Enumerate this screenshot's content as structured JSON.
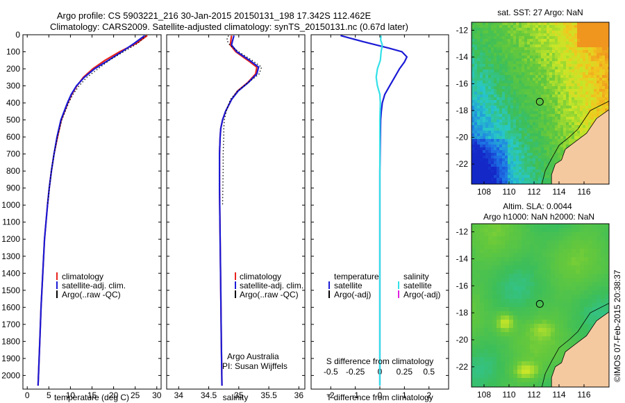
{
  "header": {
    "title_line1": "Argo profile: CS 5903221_216 30-Jan-2015 20150131_198 17.342S 112.462E",
    "title_line2": "Climatology: CARS2009. Satellite-adjusted climatology: synTS_20150131.nc (0.67d later)"
  },
  "credit": "©IMOS 07-Feb-2015 20:38:37",
  "colors": {
    "climatology": "#e8231c",
    "satellite": "#1a1ad6",
    "argo": "#000000",
    "sal_satellite": "#33e0e8",
    "sal_argo": "#e020e0",
    "land": "#f5c9a0"
  },
  "chart_data": [
    {
      "id": "temperature",
      "type": "line",
      "xlabel": "temperature (deg C)",
      "xlim": [
        -1,
        31
      ],
      "xticks": [
        0,
        5,
        10,
        15,
        20,
        25,
        30
      ],
      "ylim": [
        2080,
        0
      ],
      "yticks": [
        0,
        100,
        200,
        300,
        400,
        500,
        600,
        700,
        800,
        900,
        1000,
        1100,
        1200,
        1300,
        1400,
        1500,
        1600,
        1700,
        1800,
        1900,
        2000
      ],
      "y_inverted": true,
      "legend": [
        "climatology",
        "satellite-adj. clim.",
        "Argo(..raw -QC)"
      ],
      "series": [
        {
          "name": "climatology",
          "color_key": "climatology",
          "depth": [
            5,
            50,
            100,
            150,
            200,
            250,
            300,
            350,
            400,
            500,
            600,
            700,
            800,
            900,
            1000,
            1200,
            1400,
            1600,
            1800,
            2000,
            2060
          ],
          "values": [
            27.8,
            25.3,
            21.4,
            18.0,
            15.2,
            13.0,
            11.5,
            10.3,
            9.4,
            7.9,
            7.0,
            6.2,
            5.6,
            5.1,
            4.7,
            4.0,
            3.6,
            3.2,
            2.9,
            2.6,
            2.5
          ]
        },
        {
          "name": "satellite-adj. clim.",
          "color_key": "satellite",
          "depth": [
            5,
            50,
            100,
            150,
            200,
            250,
            300,
            350,
            400,
            500,
            600,
            700,
            800,
            900,
            1000,
            1200,
            1400,
            1600,
            1800,
            2000,
            2060
          ],
          "values": [
            27.2,
            24.8,
            21.9,
            18.8,
            15.6,
            13.2,
            11.4,
            10.2,
            9.3,
            7.8,
            6.9,
            6.2,
            5.6,
            5.1,
            4.7,
            4.0,
            3.6,
            3.2,
            2.9,
            2.6,
            2.5
          ]
        },
        {
          "name": "Argo(..raw -QC)",
          "color_key": "argo",
          "dotted": true,
          "depth": [
            5,
            50,
            100,
            150,
            200,
            250,
            300,
            350,
            400,
            500,
            600,
            700,
            800,
            900,
            1000
          ],
          "values": [
            27.5,
            25.6,
            22.3,
            19.0,
            16.4,
            13.8,
            12.0,
            10.6,
            9.6,
            8.0,
            7.0,
            6.2,
            5.6,
            5.1,
            4.7
          ]
        }
      ]
    },
    {
      "id": "salinity",
      "type": "line",
      "xlabel": "salinity",
      "xlim": [
        33.8,
        36.1
      ],
      "xticks": [
        34,
        34.5,
        35,
        35.5,
        36
      ],
      "ylim": [
        2080,
        0
      ],
      "y_inverted": true,
      "legend": [
        "climatology",
        "satellite-adj. clim.",
        "Argo(..raw -QC)"
      ],
      "annotation": [
        "Argo Australia",
        "PI: Susan Wijffels"
      ],
      "series": [
        {
          "name": "climatology",
          "color_key": "climatology",
          "depth": [
            5,
            30,
            60,
            100,
            150,
            190,
            230,
            280,
            330,
            380,
            450,
            500,
            550,
            600,
            700,
            900,
            1200,
            1500,
            1800,
            2060
          ],
          "values": [
            34.88,
            34.87,
            34.86,
            34.95,
            35.15,
            35.3,
            35.28,
            35.15,
            34.98,
            34.88,
            34.78,
            34.73,
            34.7,
            34.69,
            34.68,
            34.68,
            34.69,
            34.7,
            34.71,
            34.72
          ]
        },
        {
          "name": "satellite-adj. clim.",
          "color_key": "satellite",
          "depth": [
            5,
            30,
            60,
            100,
            150,
            190,
            230,
            280,
            330,
            380,
            450,
            500,
            550,
            600,
            700,
            900,
            1200,
            1500,
            1800,
            2060
          ],
          "values": [
            34.92,
            34.9,
            34.88,
            34.97,
            35.18,
            35.33,
            35.3,
            35.16,
            34.99,
            34.88,
            34.78,
            34.73,
            34.7,
            34.69,
            34.68,
            34.68,
            34.69,
            34.7,
            34.71,
            34.72
          ]
        },
        {
          "name": "Argo(..raw -QC)",
          "color_key": "argo",
          "dotted": true,
          "depth": [
            5,
            30,
            60,
            100,
            150,
            190,
            230,
            280,
            330,
            380,
            450,
            500,
            550,
            600,
            700,
            800,
            1000
          ],
          "values": [
            34.83,
            34.8,
            34.85,
            35.0,
            35.22,
            35.38,
            35.34,
            35.16,
            34.98,
            34.86,
            34.79,
            34.76,
            34.75,
            34.75,
            34.74,
            34.74,
            34.73
          ]
        }
      ]
    },
    {
      "id": "difference",
      "type": "line",
      "xlabel": "T difference from climatology",
      "xlabel_top": "S difference from climatology",
      "xlim": [
        -2.8,
        2.8
      ],
      "xticks": [
        -2,
        -1,
        0,
        1,
        2
      ],
      "xtick_labels_S": [
        "-0.5",
        "-0.25",
        "0",
        "0.25",
        "0.5"
      ],
      "xticks_S_position": [
        -2,
        -1,
        0,
        1,
        2
      ],
      "ylim": [
        2080,
        0
      ],
      "y_inverted": true,
      "legend_left": {
        "title": "temperature",
        "items": [
          "satellite",
          "Argo(-adj)"
        ]
      },
      "legend_right": {
        "title": "salinity",
        "items": [
          "satellite",
          "Argo(-adj)"
        ]
      },
      "series": [
        {
          "name": "T satellite",
          "color_key": "satellite",
          "depth": [
            5,
            40,
            80,
            100,
            130,
            160,
            200,
            250,
            300,
            350,
            400,
            450,
            500,
            600,
            800,
            1000,
            1500,
            2060
          ],
          "values": [
            -1.6,
            -0.7,
            0.4,
            0.9,
            1.1,
            1.0,
            0.8,
            0.6,
            0.4,
            0.2,
            0.1,
            0.06,
            0.03,
            0.02,
            0.0,
            0.0,
            0.0,
            0.0
          ]
        },
        {
          "name": "S satellite",
          "color_key": "sal_satellite",
          "depth": [
            5,
            30,
            60,
            100,
            150,
            200,
            250,
            300,
            350,
            400,
            500,
            600,
            800,
            1000,
            1500,
            2060
          ],
          "values": [
            0.05,
            0.03,
            0.1,
            0.05,
            0.02,
            -0.1,
            -0.15,
            -0.1,
            0.0,
            0.02,
            0.0,
            0.0,
            0.0,
            0.0,
            0.0,
            0.0
          ]
        }
      ]
    }
  ],
  "maps": [
    {
      "id": "sst",
      "title_line1": "sat. SST: 27 Argo: NaN",
      "title_line2": "",
      "lon_ticks": [
        108,
        110,
        112,
        114,
        116
      ],
      "lat_ticks": [
        -12,
        -14,
        -16,
        -18,
        -20,
        -22
      ],
      "xlim": [
        107,
        118
      ],
      "ylim": [
        -23.5,
        -11.4
      ],
      "marker": {
        "lon": 112.462,
        "lat": -17.342
      }
    },
    {
      "id": "sla",
      "title_line1": "Altim. SLA: 0.0044",
      "title_line2": "Argo h1000: NaN h2000: NaN",
      "lon_ticks": [
        108,
        110,
        112,
        114,
        116
      ],
      "lat_ticks": [
        -12,
        -14,
        -16,
        -18,
        -20,
        -22
      ],
      "xlim": [
        107,
        118
      ],
      "ylim": [
        -23.5,
        -11.4
      ],
      "marker": {
        "lon": 112.462,
        "lat": -17.342
      }
    }
  ]
}
